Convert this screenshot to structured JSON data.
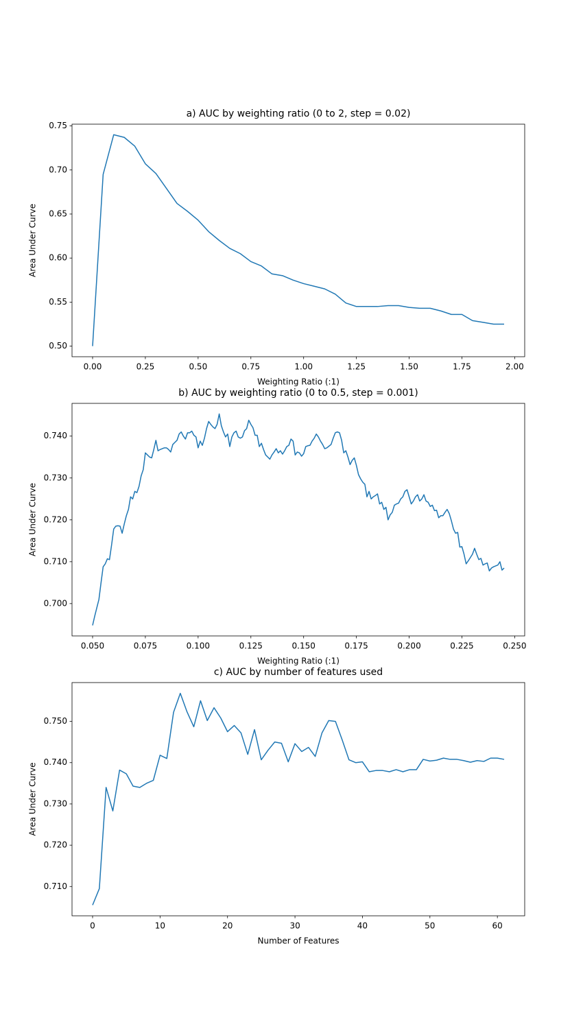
{
  "chart_data": [
    {
      "type": "line",
      "title": "a) AUC by weighting ratio (0 to 2, step = 0.02)",
      "xlabel": "Weighting Ratio (:1)",
      "ylabel": "Area Under Curve",
      "color": "#1f77b4",
      "x": [
        0,
        0.05,
        0.1,
        0.15,
        0.2,
        0.25,
        0.3,
        0.35,
        0.4,
        0.45,
        0.5,
        0.55,
        0.6,
        0.65,
        0.7,
        0.75,
        0.8,
        0.85,
        0.9,
        0.95,
        1.0,
        1.05,
        1.1,
        1.15,
        1.2,
        1.25,
        1.3,
        1.35,
        1.4,
        1.45,
        1.5,
        1.55,
        1.6,
        1.65,
        1.7,
        1.75,
        1.8,
        1.85,
        1.9,
        1.95
      ],
      "values": [
        0.5,
        0.695,
        0.74,
        0.737,
        0.727,
        0.707,
        0.696,
        0.679,
        0.662,
        0.653,
        0.643,
        0.63,
        0.62,
        0.611,
        0.605,
        0.596,
        0.591,
        0.582,
        0.58,
        0.575,
        0.571,
        0.568,
        0.565,
        0.559,
        0.549,
        0.545,
        0.545,
        0.545,
        0.546,
        0.546,
        0.544,
        0.543,
        0.543,
        0.54,
        0.536,
        0.536,
        0.529,
        0.527,
        0.525,
        0.525
      ],
      "xlim": [
        -0.0975,
        2.0475
      ],
      "ylim": [
        0.488,
        0.752
      ],
      "xticks": [
        {
          "value": 0,
          "label": "0.00"
        },
        {
          "value": 0.25,
          "label": "0.25"
        },
        {
          "value": 0.5,
          "label": "0.50"
        },
        {
          "value": 0.75,
          "label": "0.75"
        },
        {
          "value": 1.0,
          "label": "1.00"
        },
        {
          "value": 1.25,
          "label": "1.25"
        },
        {
          "value": 1.5,
          "label": "1.50"
        },
        {
          "value": 1.75,
          "label": "1.75"
        },
        {
          "value": 2.0,
          "label": "2.00"
        }
      ],
      "yticks": [
        {
          "value": 0.5,
          "label": "0.50"
        },
        {
          "value": 0.55,
          "label": "0.55"
        },
        {
          "value": 0.6,
          "label": "0.60"
        },
        {
          "value": 0.65,
          "label": "0.65"
        },
        {
          "value": 0.7,
          "label": "0.70"
        },
        {
          "value": 0.75,
          "label": "0.75"
        }
      ]
    },
    {
      "type": "line",
      "title": "b) AUC by weighting ratio (0 to 0.5, step = 0.001)",
      "xlabel": "Weighting Ratio (:1)",
      "ylabel": "Area Under Curve",
      "color": "#1f77b4",
      "x": [
        0.05,
        0.051,
        0.052,
        0.053,
        0.054,
        0.055,
        0.056,
        0.057,
        0.058,
        0.059,
        0.06,
        0.061,
        0.062,
        0.063,
        0.064,
        0.065,
        0.066,
        0.067,
        0.068,
        0.069,
        0.07,
        0.071,
        0.072,
        0.073,
        0.074,
        0.075,
        0.076,
        0.077,
        0.078,
        0.079,
        0.08,
        0.081,
        0.082,
        0.083,
        0.084,
        0.085,
        0.086,
        0.087,
        0.088,
        0.089,
        0.09,
        0.091,
        0.092,
        0.093,
        0.094,
        0.095,
        0.096,
        0.097,
        0.098,
        0.099,
        0.1,
        0.101,
        0.102,
        0.103,
        0.104,
        0.105,
        0.106,
        0.107,
        0.108,
        0.109,
        0.11,
        0.111,
        0.112,
        0.113,
        0.114,
        0.115,
        0.116,
        0.117,
        0.118,
        0.119,
        0.12,
        0.121,
        0.122,
        0.123,
        0.124,
        0.125,
        0.126,
        0.127,
        0.128,
        0.129,
        0.13,
        0.131,
        0.132,
        0.133,
        0.134,
        0.135,
        0.136,
        0.137,
        0.138,
        0.139,
        0.14,
        0.141,
        0.142,
        0.143,
        0.144,
        0.145,
        0.146,
        0.147,
        0.148,
        0.149,
        0.15,
        0.151,
        0.152,
        0.153,
        0.154,
        0.155,
        0.156,
        0.157,
        0.158,
        0.159,
        0.16,
        0.161,
        0.162,
        0.163,
        0.164,
        0.165,
        0.166,
        0.167,
        0.168,
        0.169,
        0.17,
        0.171,
        0.172,
        0.173,
        0.174,
        0.175,
        0.176,
        0.177,
        0.178,
        0.179,
        0.18,
        0.181,
        0.182,
        0.183,
        0.184,
        0.185,
        0.186,
        0.187,
        0.188,
        0.189,
        0.19,
        0.191,
        0.192,
        0.193,
        0.194,
        0.195,
        0.196,
        0.197,
        0.198,
        0.199,
        0.2,
        0.201,
        0.202,
        0.203,
        0.204,
        0.205,
        0.206,
        0.207,
        0.208,
        0.209,
        0.21,
        0.211,
        0.212,
        0.213,
        0.214,
        0.215,
        0.216,
        0.217,
        0.218,
        0.219,
        0.22,
        0.221,
        0.222,
        0.223,
        0.224,
        0.225,
        0.226,
        0.227,
        0.228,
        0.229,
        0.23,
        0.231,
        0.232,
        0.233,
        0.234,
        0.235,
        0.236,
        0.237,
        0.238,
        0.239,
        0.24,
        0.241,
        0.242,
        0.243,
        0.244,
        0.245
      ],
      "values": [
        0.6948,
        0.697,
        0.699,
        0.701,
        0.705,
        0.7088,
        0.7095,
        0.7107,
        0.7105,
        0.714,
        0.7178,
        0.7185,
        0.7186,
        0.7185,
        0.7168,
        0.719,
        0.721,
        0.7225,
        0.7255,
        0.725,
        0.7268,
        0.7265,
        0.728,
        0.7305,
        0.732,
        0.736,
        0.7355,
        0.735,
        0.7348,
        0.7368,
        0.739,
        0.7365,
        0.7368,
        0.737,
        0.7372,
        0.7372,
        0.7368,
        0.7362,
        0.738,
        0.7385,
        0.739,
        0.7405,
        0.741,
        0.74,
        0.7393,
        0.7408,
        0.7408,
        0.7412,
        0.7402,
        0.7398,
        0.7372,
        0.7388,
        0.7378,
        0.7395,
        0.7418,
        0.7435,
        0.7428,
        0.7422,
        0.7418,
        0.7428,
        0.7453,
        0.7425,
        0.741,
        0.7398,
        0.7405,
        0.7375,
        0.7398,
        0.7408,
        0.7412,
        0.7398,
        0.7395,
        0.7398,
        0.7413,
        0.7418,
        0.7438,
        0.7428,
        0.742,
        0.7402,
        0.7402,
        0.7375,
        0.7383,
        0.7368,
        0.7355,
        0.735,
        0.7345,
        0.7355,
        0.7362,
        0.737,
        0.736,
        0.7365,
        0.7357,
        0.7365,
        0.7375,
        0.7378,
        0.7393,
        0.7388,
        0.7355,
        0.7362,
        0.736,
        0.7352,
        0.7358,
        0.7375,
        0.7377,
        0.7378,
        0.7388,
        0.7395,
        0.7405,
        0.7398,
        0.7388,
        0.738,
        0.737,
        0.7372,
        0.7376,
        0.738,
        0.7395,
        0.7408,
        0.741,
        0.7408,
        0.739,
        0.736,
        0.7365,
        0.735,
        0.7332,
        0.7342,
        0.7348,
        0.733,
        0.7308,
        0.7298,
        0.729,
        0.7285,
        0.7255,
        0.7268,
        0.725,
        0.7255,
        0.7258,
        0.7262,
        0.7238,
        0.7242,
        0.7225,
        0.723,
        0.72,
        0.7212,
        0.7218,
        0.7235,
        0.7238,
        0.724,
        0.725,
        0.7255,
        0.7268,
        0.7272,
        0.7255,
        0.7238,
        0.7245,
        0.7255,
        0.726,
        0.7245,
        0.725,
        0.726,
        0.7245,
        0.7242,
        0.7232,
        0.7235,
        0.7222,
        0.7223,
        0.7205,
        0.721,
        0.721,
        0.7218,
        0.7225,
        0.7215,
        0.7198,
        0.7178,
        0.7168,
        0.717,
        0.7135,
        0.7136,
        0.7118,
        0.7095,
        0.7102,
        0.711,
        0.7118,
        0.7132,
        0.7118,
        0.7105,
        0.7108,
        0.7092,
        0.7095,
        0.7097,
        0.7078,
        0.7085,
        0.7088,
        0.709,
        0.7092,
        0.71,
        0.708,
        0.7085
      ],
      "xlim": [
        0.04025,
        0.25475
      ],
      "ylim": [
        0.69228,
        0.74782
      ],
      "xticks": [
        {
          "value": 0.05,
          "label": "0.050"
        },
        {
          "value": 0.075,
          "label": "0.075"
        },
        {
          "value": 0.1,
          "label": "0.100"
        },
        {
          "value": 0.125,
          "label": "0.125"
        },
        {
          "value": 0.15,
          "label": "0.150"
        },
        {
          "value": 0.175,
          "label": "0.175"
        },
        {
          "value": 0.2,
          "label": "0.200"
        },
        {
          "value": 0.225,
          "label": "0.225"
        },
        {
          "value": 0.25,
          "label": "0.250"
        }
      ],
      "yticks": [
        {
          "value": 0.7,
          "label": "0.700"
        },
        {
          "value": 0.71,
          "label": "0.710"
        },
        {
          "value": 0.72,
          "label": "0.720"
        },
        {
          "value": 0.73,
          "label": "0.730"
        },
        {
          "value": 0.74,
          "label": "0.740"
        }
      ]
    },
    {
      "type": "line",
      "title": "c) AUC by number of features used",
      "xlabel": "Number of Features",
      "ylabel": "Area Under Curve",
      "color": "#1f77b4",
      "x": [
        0,
        1,
        2,
        3,
        4,
        5,
        6,
        7,
        8,
        9,
        10,
        11,
        12,
        13,
        14,
        15,
        16,
        17,
        18,
        19,
        20,
        21,
        22,
        23,
        24,
        25,
        26,
        27,
        28,
        29,
        30,
        31,
        32,
        33,
        34,
        35,
        36,
        37,
        38,
        39,
        40,
        41,
        42,
        43,
        44,
        45,
        46,
        47,
        48,
        49,
        50,
        51,
        52,
        53,
        54,
        55,
        56,
        57,
        58,
        59,
        60,
        61
      ],
      "values": [
        0.7055,
        0.7095,
        0.734,
        0.7283,
        0.7382,
        0.7373,
        0.7343,
        0.734,
        0.735,
        0.7357,
        0.7418,
        0.741,
        0.7522,
        0.7568,
        0.7523,
        0.7487,
        0.755,
        0.7502,
        0.7533,
        0.7508,
        0.7475,
        0.749,
        0.7472,
        0.742,
        0.748,
        0.7407,
        0.743,
        0.745,
        0.7447,
        0.7402,
        0.7446,
        0.7427,
        0.7437,
        0.7415,
        0.7472,
        0.7502,
        0.75,
        0.7455,
        0.7407,
        0.74,
        0.7402,
        0.7378,
        0.7381,
        0.7381,
        0.7378,
        0.7383,
        0.7378,
        0.7383,
        0.7383,
        0.7408,
        0.7404,
        0.7406,
        0.7411,
        0.7408,
        0.7408,
        0.7405,
        0.7401,
        0.7405,
        0.7403,
        0.7411,
        0.7411,
        0.7408
      ],
      "xlim": [
        -3.05,
        64.05
      ],
      "ylim": [
        0.7029,
        0.7594
      ],
      "xticks": [
        0,
        10,
        20,
        30,
        40,
        50,
        60
      ],
      "yticks": [
        {
          "value": 0.71,
          "label": "0.710"
        },
        {
          "value": 0.72,
          "label": "0.720"
        },
        {
          "value": 0.73,
          "label": "0.730"
        },
        {
          "value": 0.74,
          "label": "0.740"
        },
        {
          "value": 0.75,
          "label": "0.750"
        }
      ]
    }
  ]
}
